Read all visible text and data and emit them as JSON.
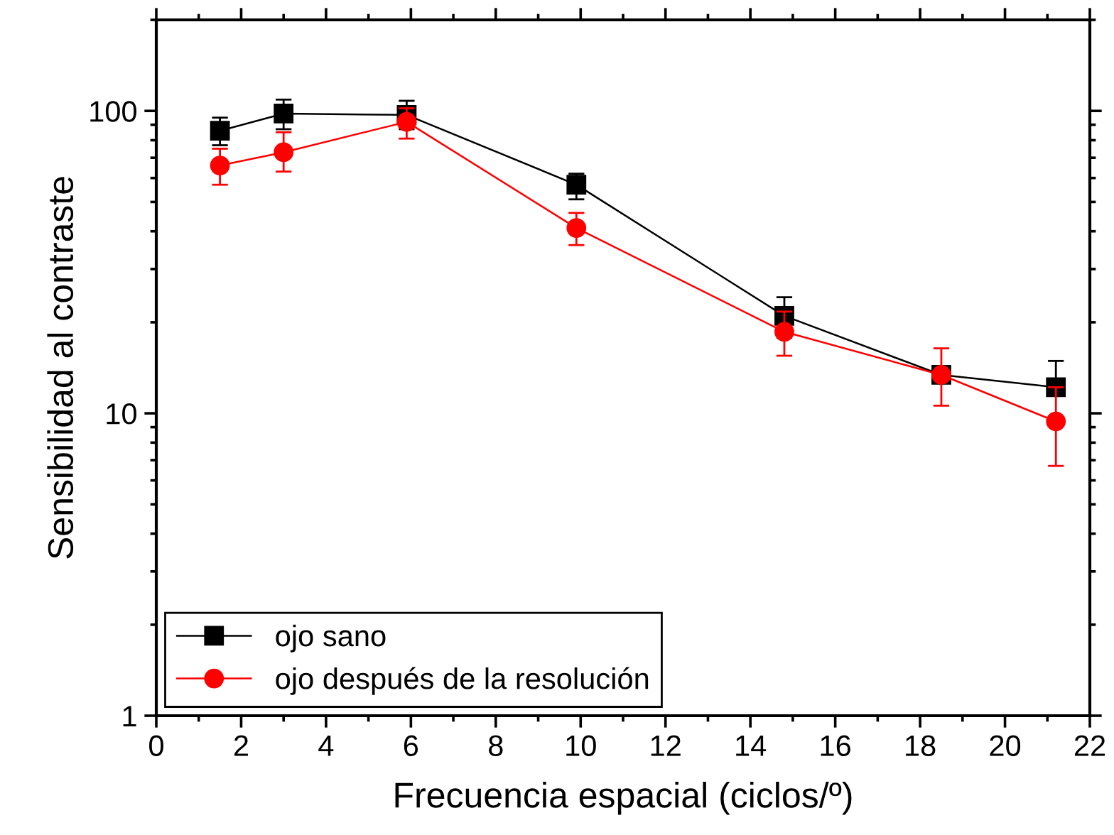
{
  "chart_data": {
    "type": "line",
    "xlabel": "Frecuencia espacial (ciclos/º)",
    "ylabel": "Sensibilidad al contraste",
    "x": [
      1.5,
      3,
      5.9,
      9.9,
      14.8,
      18.5,
      21.2
    ],
    "series": [
      {
        "name": "ojo sano",
        "color": "#000000",
        "marker": "square",
        "values": [
          86,
          98,
          97,
          57,
          21,
          13.4,
          12.2
        ],
        "errors": [
          [
            77,
            95
          ],
          [
            87,
            109
          ],
          [
            87,
            108
          ],
          [
            51,
            62
          ],
          [
            17.8,
            24.2
          ],
          null,
          [
            12.2,
            14.9
          ]
        ]
      },
      {
        "name": "ojo después de la resolución",
        "color": "#ff0000",
        "marker": "circle",
        "values": [
          66,
          73,
          92,
          41,
          18.6,
          13.4,
          9.4
        ],
        "errors": [
          [
            57,
            75
          ],
          [
            63,
            85
          ],
          [
            81,
            102
          ],
          [
            36,
            46
          ],
          [
            15.5,
            21.7
          ],
          [
            10.6,
            16.4
          ],
          [
            6.7,
            12.2
          ]
        ]
      }
    ],
    "log": "y",
    "xlim": [
      0,
      22
    ],
    "xticks": [
      0,
      2,
      4,
      6,
      8,
      10,
      12,
      14,
      16,
      18,
      20,
      22
    ],
    "ylim": [
      1,
      200
    ],
    "yticks": [
      1,
      10,
      100
    ],
    "grid": false,
    "legend": "bottom left",
    "line_style": "solid"
  }
}
